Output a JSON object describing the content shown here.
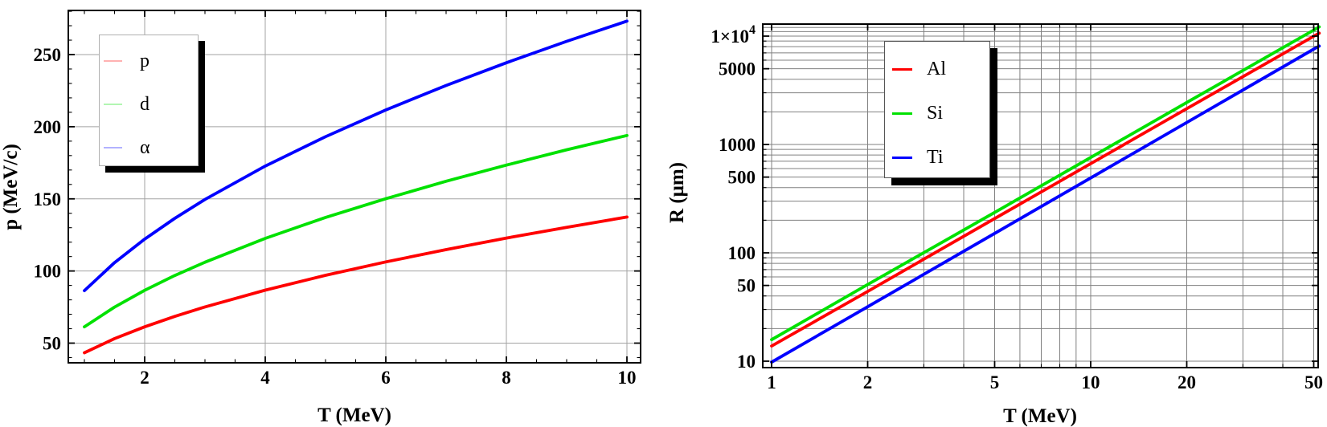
{
  "page": {
    "background": "#ffffff"
  },
  "chart_data": [
    {
      "id": "momentum-vs-energy",
      "type": "line",
      "title": "",
      "xlabel": "T (MeV)",
      "ylabel": "p (MeV/c)",
      "xscale": "linear",
      "yscale": "linear",
      "xlim": [
        0.73,
        10.23
      ],
      "ylim": [
        36.3,
        280.6
      ],
      "grid": {
        "on": true,
        "color": "#a3a3a3",
        "x": [
          2,
          4,
          6,
          8,
          10
        ],
        "y": [
          50,
          100,
          150,
          200,
          250
        ]
      },
      "xticks": {
        "major": [
          2,
          4,
          6,
          8,
          10
        ],
        "labels": [
          "2",
          "4",
          "6",
          "8",
          "10"
        ],
        "minor": [
          1,
          1.5,
          2.5,
          3,
          3.5,
          4.5,
          5,
          5.5,
          6.5,
          7,
          7.5,
          8.5,
          9,
          9.5
        ]
      },
      "yticks": {
        "major": [
          50,
          100,
          150,
          200,
          250
        ],
        "labels": [
          "50",
          "100",
          "150",
          "200",
          "250"
        ],
        "minor": [
          40,
          60,
          70,
          80,
          90,
          110,
          120,
          130,
          140,
          160,
          170,
          180,
          190,
          210,
          220,
          230,
          240,
          260,
          270,
          280
        ]
      },
      "legend": {
        "position": "upper-left",
        "items": [
          {
            "label": "p",
            "color": "#ff0000"
          },
          {
            "label": "d",
            "color": "#00e100"
          },
          {
            "label": "α",
            "color": "#0000ff"
          }
        ]
      },
      "series": [
        {
          "name": "p",
          "color": "#ff0000",
          "x": [
            1,
            1.5,
            2,
            2.5,
            3,
            4,
            5,
            6,
            7,
            8,
            9,
            10
          ],
          "y": [
            43.3,
            53.1,
            61.3,
            68.5,
            75.1,
            86.7,
            97.0,
            106.3,
            114.8,
            122.8,
            130.3,
            137.4
          ]
        },
        {
          "name": "d",
          "color": "#00e100",
          "x": [
            1,
            1.5,
            2,
            2.5,
            3,
            4,
            5,
            6,
            7,
            8,
            9,
            10
          ],
          "y": [
            61.3,
            75.0,
            86.6,
            96.9,
            106.1,
            122.6,
            137.1,
            150.1,
            162.2,
            173.4,
            184.0,
            193.9
          ]
        },
        {
          "name": "α",
          "color": "#0000ff",
          "x": [
            1,
            1.5,
            2,
            2.5,
            3,
            4,
            5,
            6,
            7,
            8,
            9,
            10
          ],
          "y": [
            86.4,
            105.8,
            122.1,
            136.5,
            149.6,
            172.7,
            193.1,
            211.6,
            228.6,
            244.3,
            259.2,
            273.2
          ]
        }
      ]
    },
    {
      "id": "range-vs-energy",
      "type": "line",
      "title": "",
      "xlabel": "T (MeV)",
      "ylabel": "R (μm)",
      "xscale": "log",
      "yscale": "log",
      "xlim": [
        0.94,
        51.9
      ],
      "ylim": [
        8.6,
        12900
      ],
      "grid": {
        "on": true,
        "color": "#808080",
        "x": [
          1,
          2,
          3,
          4,
          5,
          6,
          7,
          8,
          9,
          10,
          20,
          30,
          40,
          50
        ],
        "y": [
          10,
          20,
          30,
          40,
          50,
          60,
          70,
          80,
          90,
          100,
          200,
          300,
          400,
          500,
          600,
          700,
          800,
          900,
          1000,
          2000,
          3000,
          4000,
          5000,
          6000,
          7000,
          8000,
          9000,
          10000,
          11000,
          12000
        ]
      },
      "xticks": {
        "major": [
          1,
          2,
          5,
          10,
          20,
          50
        ],
        "labels": [
          "1",
          "2",
          "5",
          "10",
          "20",
          "50"
        ],
        "minor": [
          3,
          4,
          6,
          7,
          8,
          9,
          30,
          40
        ]
      },
      "yticks": {
        "major": [
          10,
          50,
          100,
          500,
          1000,
          5000,
          10000
        ],
        "labels": [
          "10",
          "50",
          "100",
          "500",
          "1000",
          "5000",
          "1×10^4"
        ],
        "minor": [
          20,
          30,
          40,
          60,
          70,
          80,
          90,
          200,
          300,
          400,
          600,
          700,
          800,
          900,
          2000,
          3000,
          4000,
          6000,
          7000,
          8000,
          9000
        ]
      },
      "legend": {
        "position": "upper-middle",
        "items": [
          {
            "label": "Al",
            "color": "#ff0000"
          },
          {
            "label": "Si",
            "color": "#00e100"
          },
          {
            "label": "Ti",
            "color": "#0000ff"
          }
        ]
      },
      "series": [
        {
          "name": "Al",
          "color": "#ff0000",
          "x": [
            1,
            2,
            5,
            10,
            20,
            50,
            52
          ],
          "y": [
            13.8,
            44,
            207,
            665,
            2140,
            9990,
            10650
          ]
        },
        {
          "name": "Si",
          "color": "#00e100",
          "x": [
            1,
            2,
            5,
            10,
            20,
            50,
            52
          ],
          "y": [
            15.8,
            51,
            236,
            759,
            2440,
            11370,
            12170
          ]
        },
        {
          "name": "Ti",
          "color": "#0000ff",
          "x": [
            1,
            2,
            5,
            10,
            20,
            50,
            52
          ],
          "y": [
            9.8,
            31.8,
            151,
            491,
            1595,
            7580,
            8090
          ]
        }
      ]
    }
  ]
}
